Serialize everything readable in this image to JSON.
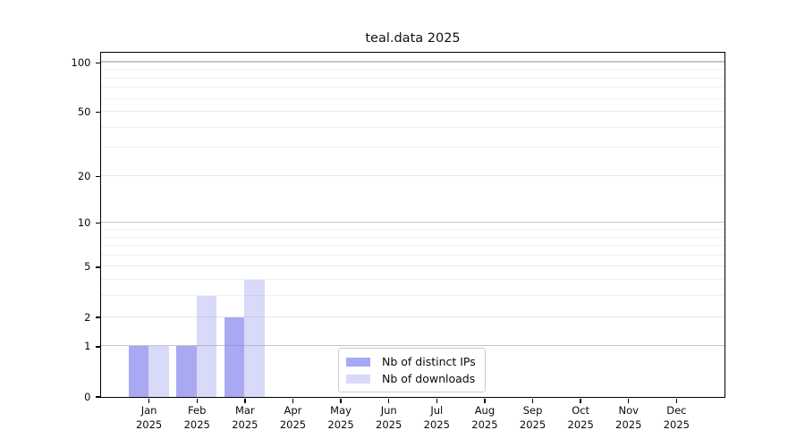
{
  "title": "teal.data 2025",
  "chart_data": {
    "type": "bar",
    "title": "teal.data 2025",
    "yscale": "log1p",
    "grid": true,
    "categories": [
      "Jan 2025",
      "Feb 2025",
      "Mar 2025",
      "Apr 2025",
      "May 2025",
      "Jun 2025",
      "Jul 2025",
      "Aug 2025",
      "Sep 2025",
      "Oct 2025",
      "Nov 2025",
      "Dec 2025"
    ],
    "series": [
      {
        "name": "Nb of distinct IPs",
        "color": "rgba(128,128,238,0.68)",
        "values": [
          1,
          1,
          2,
          0,
          0,
          0,
          0,
          0,
          0,
          0,
          0,
          0
        ]
      },
      {
        "name": "Nb of downloads",
        "color": "rgba(128,128,238,0.30)",
        "values": [
          1,
          3,
          4,
          0,
          0,
          0,
          0,
          0,
          0,
          0,
          0,
          0
        ]
      }
    ],
    "yticks": [
      0,
      1,
      2,
      5,
      10,
      20,
      50,
      100
    ],
    "minor_yticks": [
      3,
      4,
      6,
      7,
      8,
      9,
      30,
      40,
      60,
      70,
      80,
      90
    ],
    "major_gridline_values": [
      1,
      10,
      100
    ],
    "ylim": [
      0,
      115
    ],
    "xlabel": "",
    "ylabel": "",
    "legend_position": "lower center"
  },
  "colors": {
    "bar_dark_composite": "#a9a9f3",
    "bar_light_composite": "#d9d9fa",
    "grid_minor": "#f0f0f0",
    "grid_labeled": "#e9e9e9",
    "grid_major": "#c6c6c6",
    "axis": "#000000",
    "text": "#0a0a0a",
    "legend_border": "#cccccc",
    "background": "#ffffff"
  }
}
